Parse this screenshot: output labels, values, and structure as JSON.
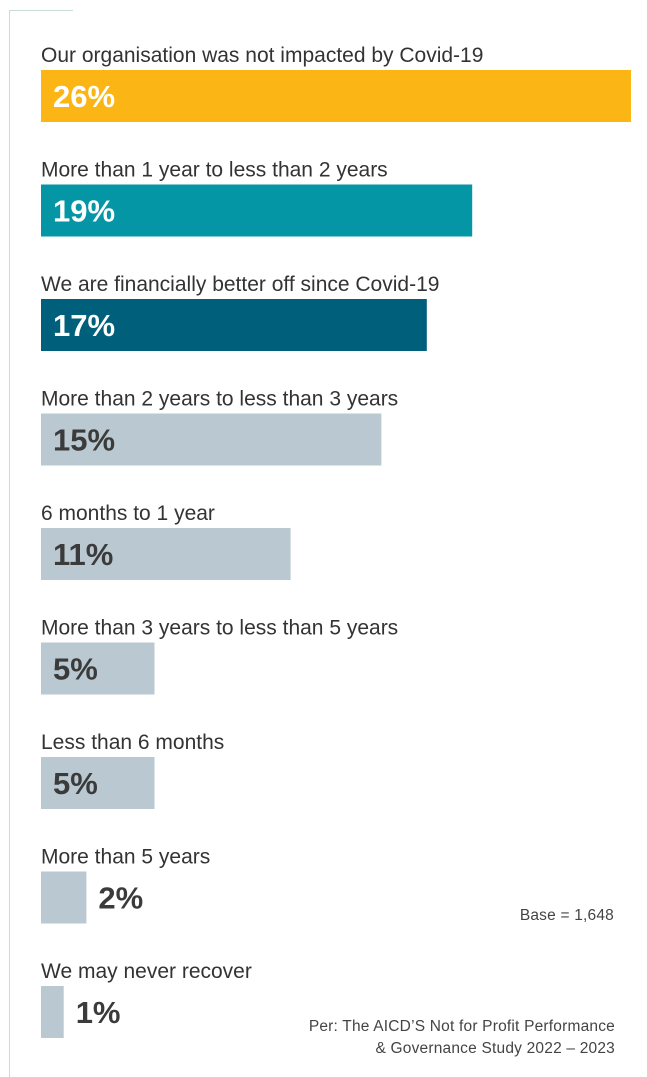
{
  "chart_data": {
    "type": "bar",
    "orientation": "horizontal",
    "categories": [
      "Our organisation was not impacted by Covid-19",
      "More than 1 year to less than 2 years",
      "We are financially better off since Covid-19",
      "More than 2 years to less than 3 years",
      "6 months to 1 year",
      "More than 3 years to less than 5 years",
      "Less than 6 months",
      "More than 5 years",
      "We may never recover"
    ],
    "values": [
      26,
      19,
      17,
      15,
      11,
      5,
      5,
      2,
      1
    ],
    "value_labels": [
      "26%",
      "19%",
      "17%",
      "15%",
      "11%",
      "5%",
      "5%",
      "2%",
      "1%"
    ],
    "unit": "%",
    "bar_colors": [
      "#fbb616",
      "#0596a6",
      "#005f7a",
      "#bac9d1",
      "#bac9d1",
      "#bac9d1",
      "#bac9d1",
      "#bac9d1",
      "#bac9d1"
    ],
    "label_colors": [
      "#ffffff",
      "#ffffff",
      "#ffffff",
      "#3b3b3b",
      "#3b3b3b",
      "#3b3b3b",
      "#3b3b3b",
      "#3b3b3b",
      "#3b3b3b"
    ],
    "grid": false,
    "legend": "none"
  },
  "notes": {
    "base": "Base = 1,648",
    "source_line1": "Per: The AICD’S Not for Profit Performance",
    "source_line2": "& Governance Study 2022 – 2023"
  }
}
